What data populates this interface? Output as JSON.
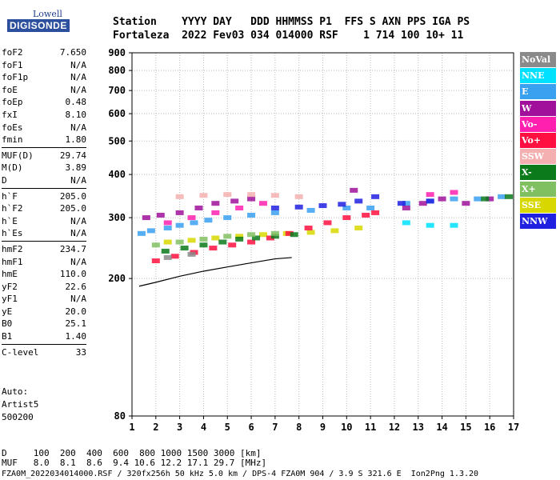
{
  "logo": {
    "line1": "Lowell",
    "line2": "DIGISONDE"
  },
  "header": {
    "line1": "Station    YYYY DAY   DDD HHMMSS P1  FFS S AXN PPS IGA PS",
    "line2": "Fortaleza  2022 Fev03 034 014000 RSF    1 714 100 10+ 11"
  },
  "params": [
    [
      {
        "k": "foF2",
        "v": "7.650"
      },
      {
        "k": "foF1",
        "v": "N/A"
      },
      {
        "k": "foF1p",
        "v": "N/A"
      },
      {
        "k": "foE",
        "v": "N/A"
      },
      {
        "k": "foEp",
        "v": "0.48"
      },
      {
        "k": "fxI",
        "v": "8.10"
      },
      {
        "k": "foEs",
        "v": "N/A"
      },
      {
        "k": "fmin",
        "v": "1.80"
      }
    ],
    [
      {
        "k": "MUF(D)",
        "v": "29.74"
      },
      {
        "k": "M(D)",
        "v": "3.89"
      },
      {
        "k": "D",
        "v": "N/A"
      }
    ],
    [
      {
        "k": "h`F",
        "v": "205.0"
      },
      {
        "k": "h`F2",
        "v": "205.0"
      },
      {
        "k": "h`E",
        "v": "N/A"
      },
      {
        "k": "h`Es",
        "v": "N/A"
      }
    ],
    [
      {
        "k": "hmF2",
        "v": "234.7"
      },
      {
        "k": "hmF1",
        "v": "N/A"
      },
      {
        "k": "hmE",
        "v": "110.0"
      },
      {
        "k": "yF2",
        "v": "22.6"
      },
      {
        "k": "yF1",
        "v": "N/A"
      },
      {
        "k": "yE",
        "v": "20.0"
      },
      {
        "k": "B0",
        "v": "25.1"
      },
      {
        "k": "B1",
        "v": "1.40"
      }
    ],
    [
      {
        "k": "C-level",
        "v": "33"
      }
    ]
  ],
  "auto": {
    "l1": "Auto:",
    "l2": "Artist5",
    "l3": "500200"
  },
  "legend": [
    {
      "label": "NoVal",
      "color": "#8a8a8a"
    },
    {
      "label": "NNE",
      "color": "#00e0ff"
    },
    {
      "label": "E",
      "color": "#3aa0f0"
    },
    {
      "label": "W",
      "color": "#a0109a"
    },
    {
      "label": "Vo-",
      "color": "#ff20b0"
    },
    {
      "label": "Vo+",
      "color": "#ff1040"
    },
    {
      "label": "SSW",
      "color": "#f4b0b0"
    },
    {
      "label": "X-",
      "color": "#0a7a1a"
    },
    {
      "label": "X+",
      "color": "#80c060"
    },
    {
      "label": "SSE",
      "color": "#d8d800"
    },
    {
      "label": "NNW",
      "color": "#2020e0"
    }
  ],
  "chart_data": {
    "type": "scatter",
    "x_ticks": [
      "1",
      "2",
      "3",
      "4",
      "5",
      "6",
      "7",
      "8",
      "9",
      "10",
      "11",
      "12",
      "13",
      "14",
      "15",
      "16",
      "17"
    ],
    "y_ticks": [
      "80",
      "200",
      "300",
      "400",
      "500",
      "600",
      "700",
      "800",
      "900"
    ],
    "xlim": [
      1,
      17
    ],
    "y_scale": "log",
    "ylim": [
      80,
      900
    ],
    "grid": true,
    "series": [
      {
        "color_key": "E",
        "x": [
          1.4,
          1.8,
          2.5,
          3.0,
          3.6,
          4.2,
          5.0,
          6.0,
          7.0,
          8.5,
          10.0,
          11.0,
          12.5,
          13.5,
          14.5,
          15.5,
          16.5
        ],
        "y": [
          270,
          275,
          280,
          285,
          290,
          295,
          300,
          305,
          310,
          315,
          320,
          320,
          330,
          335,
          340,
          340,
          345
        ]
      },
      {
        "color_key": "NNE",
        "x": [
          12.5,
          13.5,
          14.5
        ],
        "y": [
          290,
          285,
          285
        ]
      },
      {
        "color_key": "SSE",
        "x": [
          2.5,
          3.5,
          4.5,
          5.5,
          6.5,
          7.5,
          8.5,
          9.5,
          10.5
        ],
        "y": [
          255,
          258,
          262,
          265,
          268,
          270,
          272,
          275,
          280
        ]
      },
      {
        "color_key": "Vo+",
        "x": [
          2.0,
          2.8,
          3.6,
          4.4,
          5.2,
          6.0,
          6.8,
          7.6,
          8.4,
          9.2,
          10.0,
          10.8,
          11.2
        ],
        "y": [
          225,
          232,
          238,
          245,
          250,
          255,
          262,
          270,
          280,
          290,
          300,
          305,
          310
        ]
      },
      {
        "color_key": "W",
        "x": [
          1.6,
          2.2,
          3.0,
          3.8,
          4.5,
          5.3,
          6.0,
          10.3,
          12.5,
          13.2,
          14.0,
          15.0,
          16.0
        ],
        "y": [
          300,
          305,
          310,
          320,
          330,
          335,
          340,
          360,
          320,
          330,
          340,
          330,
          340
        ]
      },
      {
        "color_key": "NNW",
        "x": [
          7.0,
          8.0,
          9.0,
          9.8,
          10.5,
          11.2,
          12.3,
          13.5
        ],
        "y": [
          320,
          322,
          325,
          328,
          335,
          345,
          330,
          335
        ]
      },
      {
        "color_key": "X-",
        "x": [
          2.4,
          3.2,
          4.0,
          4.8,
          5.5,
          6.2,
          7.0,
          7.8,
          15.8,
          16.8
        ],
        "y": [
          240,
          245,
          250,
          255,
          260,
          262,
          265,
          268,
          340,
          345
        ]
      },
      {
        "color_key": "X+",
        "x": [
          2.0,
          3.0,
          4.0,
          5.0,
          6.0,
          7.0
        ],
        "y": [
          250,
          255,
          260,
          265,
          268,
          270
        ]
      },
      {
        "color_key": "SSW",
        "x": [
          3.0,
          4.0,
          5.0,
          6.0,
          7.0,
          8.0
        ],
        "y": [
          345,
          348,
          350,
          350,
          348,
          345
        ]
      },
      {
        "color_key": "Vo-",
        "x": [
          2.5,
          3.5,
          4.5,
          5.5,
          6.5,
          13.5,
          14.5
        ],
        "y": [
          290,
          300,
          310,
          320,
          330,
          350,
          355
        ]
      },
      {
        "color_key": "NoVal",
        "x": [
          2.5,
          3.5
        ],
        "y": [
          230,
          235
        ]
      }
    ],
    "trace": {
      "x": [
        1.3,
        2.0,
        3.0,
        4.0,
        5.0,
        6.0,
        7.0,
        7.7
      ],
      "y": [
        190,
        195,
        203,
        210,
        216,
        222,
        228,
        230
      ]
    }
  },
  "footer": {
    "line1": "D     100  200  400  600  800 1000 1500 3000 [km]",
    "line2": "MUF   8.0  8.1  8.6  9.4 10.6 12.2 17.1 29.7 [MHz]",
    "line3": "FZA0M_2022034014000.RSF / 320fx256h 50 kHz 5.0 km / DPS-4 FZA0M 904 / 3.9 S 321.6 E  Ion2Png 1.3.20"
  }
}
